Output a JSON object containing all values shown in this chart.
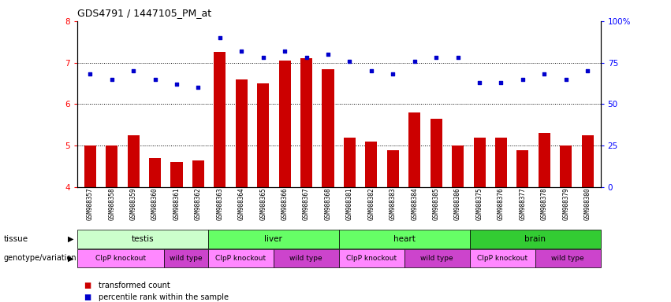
{
  "title": "GDS4791 / 1447105_PM_at",
  "samples": [
    "GSM988357",
    "GSM988358",
    "GSM988359",
    "GSM988360",
    "GSM988361",
    "GSM988362",
    "GSM988363",
    "GSM988364",
    "GSM988365",
    "GSM988366",
    "GSM988367",
    "GSM988368",
    "GSM988381",
    "GSM988382",
    "GSM988383",
    "GSM988384",
    "GSM988385",
    "GSM988386",
    "GSM988375",
    "GSM988376",
    "GSM988377",
    "GSM988378",
    "GSM988379",
    "GSM988380"
  ],
  "bar_values": [
    5.0,
    5.0,
    5.25,
    4.7,
    4.6,
    4.65,
    7.25,
    6.6,
    6.5,
    7.05,
    7.1,
    6.85,
    5.2,
    5.1,
    4.9,
    5.8,
    5.65,
    5.0,
    5.2,
    5.2,
    4.9,
    5.3,
    5.0,
    5.25
  ],
  "dot_values_pct": [
    68,
    65,
    70,
    65,
    62,
    60,
    90,
    82,
    78,
    82,
    78,
    80,
    76,
    70,
    68,
    76,
    78,
    78,
    63,
    63,
    65,
    68,
    65,
    70
  ],
  "bar_color": "#cc0000",
  "dot_color": "#0000cc",
  "ylim_left": [
    4.0,
    8.0
  ],
  "ylim_right": [
    0,
    100
  ],
  "yticks_left": [
    4,
    5,
    6,
    7,
    8
  ],
  "yticks_right": [
    0,
    25,
    50,
    75,
    100
  ],
  "grid_lines": [
    5.0,
    6.0,
    7.0
  ],
  "tissue_groups": [
    {
      "label": "testis",
      "start": 0,
      "end": 6,
      "color": "#ccffcc"
    },
    {
      "label": "liver",
      "start": 6,
      "end": 12,
      "color": "#66ff66"
    },
    {
      "label": "heart",
      "start": 12,
      "end": 18,
      "color": "#66ff66"
    },
    {
      "label": "brain",
      "start": 18,
      "end": 24,
      "color": "#33cc33"
    }
  ],
  "genotype_groups": [
    {
      "label": "ClpP knockout",
      "start": 0,
      "end": 4,
      "color": "#ff88ff"
    },
    {
      "label": "wild type",
      "start": 4,
      "end": 6,
      "color": "#cc44cc"
    },
    {
      "label": "ClpP knockout",
      "start": 6,
      "end": 9,
      "color": "#ff88ff"
    },
    {
      "label": "wild type",
      "start": 9,
      "end": 12,
      "color": "#cc44cc"
    },
    {
      "label": "ClpP knockout",
      "start": 12,
      "end": 15,
      "color": "#ff88ff"
    },
    {
      "label": "wild type",
      "start": 15,
      "end": 18,
      "color": "#cc44cc"
    },
    {
      "label": "ClpP knockout",
      "start": 18,
      "end": 21,
      "color": "#ff88ff"
    },
    {
      "label": "wild type",
      "start": 21,
      "end": 24,
      "color": "#cc44cc"
    }
  ],
  "tissue_row_label": "tissue",
  "genotype_row_label": "genotype/variation",
  "legend_bar_label": "transformed count",
  "legend_dot_label": "percentile rank within the sample"
}
